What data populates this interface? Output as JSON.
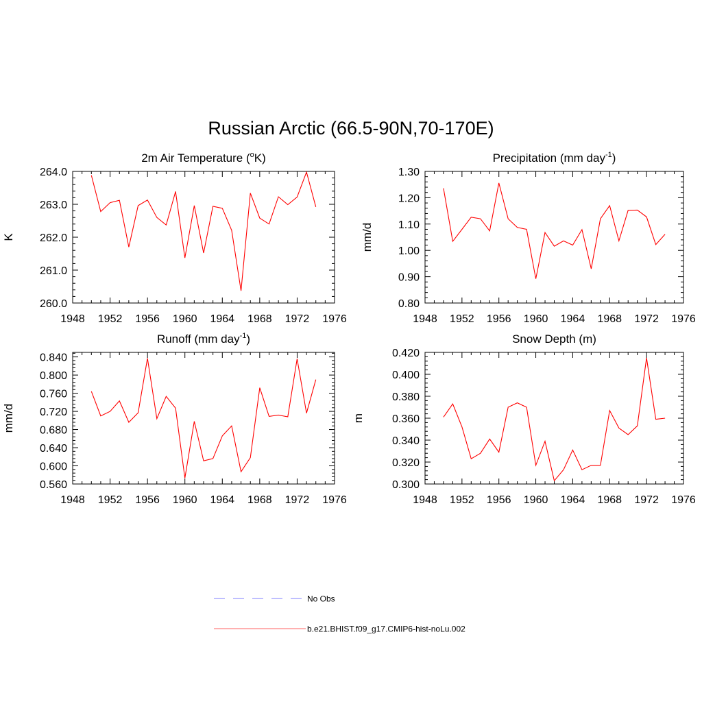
{
  "figure": {
    "title": "Russian Arctic (66.5-90N,70-170E)",
    "line_color": "#ff0000",
    "obs_color": "#9999ff"
  },
  "legend": {
    "items": [
      {
        "label": "No Obs",
        "style": "dashed",
        "color": "#9999ff"
      },
      {
        "label": "b.e21.BHIST.f09_g17.CMIP6-hist-noLu.002",
        "style": "solid",
        "color": "#ff0000"
      }
    ]
  },
  "chart_data": [
    {
      "type": "line",
      "title": "2m Air Temperature (oK)",
      "title_parts": {
        "pre": "2m Air Temperature (",
        "sup": "o",
        "post": "K)"
      },
      "ylabel": "K",
      "xlim": [
        1948,
        1976
      ],
      "ylim": [
        260.0,
        264.0
      ],
      "xticks": [
        "1948",
        "1952",
        "1956",
        "1960",
        "1964",
        "1968",
        "1972",
        "1976"
      ],
      "yticks": [
        "260.0",
        "261.0",
        "262.0",
        "263.0",
        "264.0"
      ],
      "x": [
        1950,
        1951,
        1952,
        1953,
        1954,
        1955,
        1956,
        1957,
        1958,
        1959,
        1960,
        1961,
        1962,
        1963,
        1964,
        1965,
        1966,
        1967,
        1968,
        1969,
        1970,
        1971,
        1972,
        1973,
        1974
      ],
      "series": [
        {
          "values": [
            263.88,
            262.78,
            263.05,
            263.12,
            261.7,
            262.96,
            263.13,
            262.6,
            262.37,
            263.39,
            261.37,
            262.96,
            261.52,
            262.94,
            262.88,
            262.21,
            260.37,
            263.34,
            262.58,
            262.4,
            263.23,
            262.99,
            263.22,
            263.98,
            262.92
          ]
        }
      ]
    },
    {
      "type": "line",
      "title": "Precipitation (mm day-1)",
      "title_parts": {
        "pre": "Precipitation (mm day",
        "sup": "-1",
        "post": ")"
      },
      "ylabel": "mm/d",
      "xlim": [
        1948,
        1976
      ],
      "ylim": [
        0.8,
        1.3
      ],
      "xticks": [
        "1948",
        "1952",
        "1956",
        "1960",
        "1964",
        "1968",
        "1972",
        "1976"
      ],
      "yticks": [
        "0.80",
        "0.90",
        "1.00",
        "1.10",
        "1.20",
        "1.30"
      ],
      "x": [
        1950,
        1951,
        1952,
        1953,
        1954,
        1955,
        1956,
        1957,
        1958,
        1959,
        1960,
        1961,
        1962,
        1963,
        1964,
        1965,
        1966,
        1967,
        1968,
        1969,
        1970,
        1971,
        1972,
        1973,
        1974
      ],
      "series": [
        {
          "values": [
            1.236,
            1.034,
            1.08,
            1.126,
            1.12,
            1.074,
            1.256,
            1.12,
            1.087,
            1.08,
            0.892,
            1.068,
            1.016,
            1.036,
            1.02,
            1.079,
            0.93,
            1.12,
            1.17,
            1.036,
            1.152,
            1.153,
            1.127,
            1.022,
            1.061
          ]
        }
      ]
    },
    {
      "type": "line",
      "title": "Runoff (mm day-1)",
      "title_parts": {
        "pre": "Runoff (mm day",
        "sup": "-1",
        "post": ")"
      },
      "ylabel": "mm/d",
      "xlim": [
        1948,
        1976
      ],
      "ylim": [
        0.56,
        0.85
      ],
      "xticks": [
        "1948",
        "1952",
        "1956",
        "1960",
        "1964",
        "1968",
        "1972",
        "1976"
      ],
      "yticks": [
        "0.560",
        "0.600",
        "0.640",
        "0.680",
        "0.720",
        "0.760",
        "0.800",
        "0.840"
      ],
      "x": [
        1950,
        1951,
        1952,
        1953,
        1954,
        1955,
        1956,
        1957,
        1958,
        1959,
        1960,
        1961,
        1962,
        1963,
        1964,
        1965,
        1966,
        1967,
        1968,
        1969,
        1970,
        1971,
        1972,
        1973,
        1974
      ],
      "series": [
        {
          "values": [
            0.764,
            0.71,
            0.72,
            0.743,
            0.696,
            0.717,
            0.837,
            0.704,
            0.753,
            0.727,
            0.573,
            0.698,
            0.611,
            0.616,
            0.666,
            0.688,
            0.587,
            0.618,
            0.772,
            0.709,
            0.712,
            0.708,
            0.836,
            0.716,
            0.79
          ]
        }
      ]
    },
    {
      "type": "line",
      "title": "Snow Depth (m)",
      "title_parts": {
        "pre": "Snow Depth (m)",
        "sup": "",
        "post": ""
      },
      "ylabel": "m",
      "xlim": [
        1948,
        1976
      ],
      "ylim": [
        0.3,
        0.42
      ],
      "xticks": [
        "1948",
        "1952",
        "1956",
        "1960",
        "1964",
        "1968",
        "1972",
        "1976"
      ],
      "yticks": [
        "0.300",
        "0.320",
        "0.340",
        "0.360",
        "0.380",
        "0.400",
        "0.420"
      ],
      "x": [
        1950,
        1951,
        1952,
        1953,
        1954,
        1955,
        1956,
        1957,
        1958,
        1959,
        1960,
        1961,
        1962,
        1963,
        1964,
        1965,
        1966,
        1967,
        1968,
        1969,
        1970,
        1971,
        1972,
        1973,
        1974
      ],
      "series": [
        {
          "values": [
            0.361,
            0.373,
            0.352,
            0.323,
            0.328,
            0.341,
            0.329,
            0.37,
            0.374,
            0.37,
            0.317,
            0.339,
            0.303,
            0.313,
            0.331,
            0.313,
            0.317,
            0.317,
            0.367,
            0.351,
            0.345,
            0.353,
            0.415,
            0.359,
            0.36
          ]
        }
      ]
    }
  ]
}
